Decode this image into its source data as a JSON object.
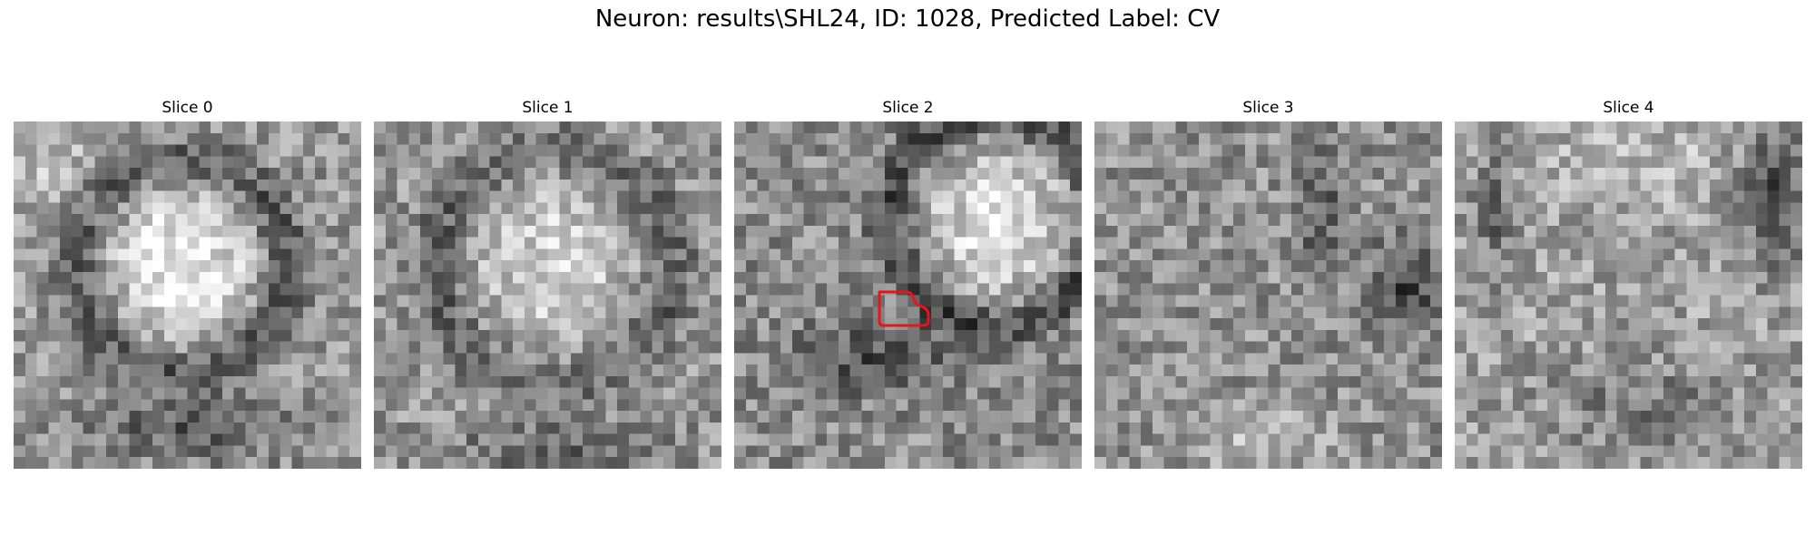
{
  "figure": {
    "title": "Neuron: results\\SHL24, ID: 1028, Predicted Label: CV",
    "outline_color": "#e8141c"
  },
  "panels": [
    {
      "title": "Slice 0"
    },
    {
      "title": "Slice 1"
    },
    {
      "title": "Slice 2"
    },
    {
      "title": "Slice 3"
    },
    {
      "title": "Slice 4"
    }
  ]
}
